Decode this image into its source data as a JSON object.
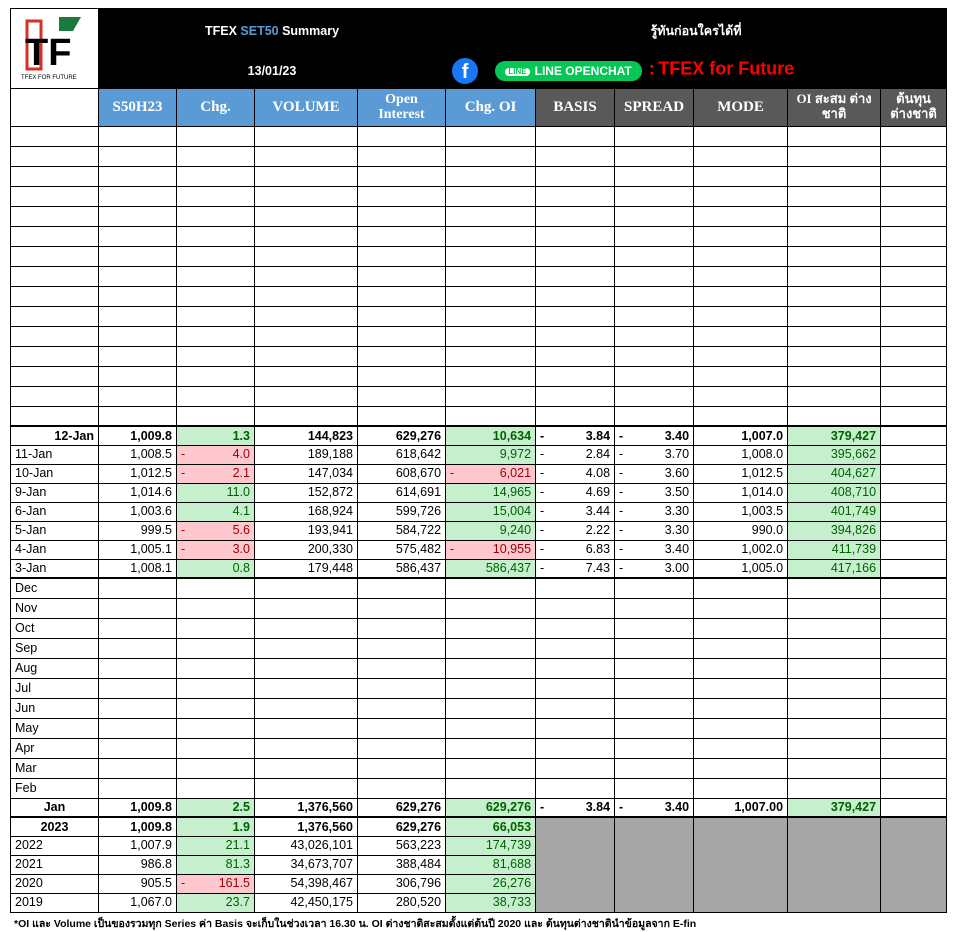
{
  "header": {
    "title_pre": "TFEX ",
    "title_accent": "SET50",
    "title_post": " Summary",
    "date": "13/01/23",
    "promo_text": "รู้ทันก่อนใครได้ที่",
    "line_chip": "LINE OPENCHAT",
    "line_glyph": "LINE",
    "promo_separator": ":",
    "promo_brand": "TFEX for Future",
    "logo_letters": "TF",
    "logo_caption": "TFEX FOR FUTURE",
    "fb_glyph": "f"
  },
  "columns": [
    "S50H23",
    "Chg.",
    "VOLUME",
    "Open Interest",
    "Chg. OI",
    "BASIS",
    "SPREAD",
    "MODE",
    "OI สะสม ต่างชาติ",
    "ต้นทุน ต่างชาติ"
  ],
  "daily": [
    {
      "date": "12-Jan",
      "price": "1,009.8",
      "chg": "1.3",
      "chg_neg": false,
      "volume": "144,823",
      "oi": "629,276",
      "chg_oi": "10,634",
      "oi_neg": false,
      "basis_sign": "-",
      "basis": "3.84",
      "spread_sign": "-",
      "spread": "3.40",
      "mode": "1,007.0",
      "foreign_oi": "379,427",
      "bold": true
    },
    {
      "date": "11-Jan",
      "price": "1,008.5",
      "chg": "4.0",
      "chg_neg": true,
      "volume": "189,188",
      "oi": "618,642",
      "chg_oi": "9,972",
      "oi_neg": false,
      "basis_sign": "-",
      "basis": "2.84",
      "spread_sign": "-",
      "spread": "3.70",
      "mode": "1,008.0",
      "foreign_oi": "395,662",
      "bold": false
    },
    {
      "date": "10-Jan",
      "price": "1,012.5",
      "chg": "2.1",
      "chg_neg": true,
      "volume": "147,034",
      "oi": "608,670",
      "chg_oi": "6,021",
      "oi_neg": true,
      "basis_sign": "-",
      "basis": "4.08",
      "spread_sign": "-",
      "spread": "3.60",
      "mode": "1,012.5",
      "foreign_oi": "404,627",
      "bold": false
    },
    {
      "date": "9-Jan",
      "price": "1,014.6",
      "chg": "11.0",
      "chg_neg": false,
      "volume": "152,872",
      "oi": "614,691",
      "chg_oi": "14,965",
      "oi_neg": false,
      "basis_sign": "-",
      "basis": "4.69",
      "spread_sign": "-",
      "spread": "3.50",
      "mode": "1,014.0",
      "foreign_oi": "408,710",
      "bold": false
    },
    {
      "date": "6-Jan",
      "price": "1,003.6",
      "chg": "4.1",
      "chg_neg": false,
      "volume": "168,924",
      "oi": "599,726",
      "chg_oi": "15,004",
      "oi_neg": false,
      "basis_sign": "-",
      "basis": "3.44",
      "spread_sign": "-",
      "spread": "3.30",
      "mode": "1,003.5",
      "foreign_oi": "401,749",
      "bold": false
    },
    {
      "date": "5-Jan",
      "price": "999.5",
      "chg": "5.6",
      "chg_neg": true,
      "volume": "193,941",
      "oi": "584,722",
      "chg_oi": "9,240",
      "oi_neg": false,
      "basis_sign": "-",
      "basis": "2.22",
      "spread_sign": "-",
      "spread": "3.30",
      "mode": "990.0",
      "foreign_oi": "394,826",
      "bold": false
    },
    {
      "date": "4-Jan",
      "price": "1,005.1",
      "chg": "3.0",
      "chg_neg": true,
      "volume": "200,330",
      "oi": "575,482",
      "chg_oi": "10,955",
      "oi_neg": true,
      "basis_sign": "-",
      "basis": "6.83",
      "spread_sign": "-",
      "spread": "3.40",
      "mode": "1,002.0",
      "foreign_oi": "411,739",
      "bold": false
    },
    {
      "date": "3-Jan",
      "price": "1,008.1",
      "chg": "0.8",
      "chg_neg": false,
      "volume": "179,448",
      "oi": "586,437",
      "chg_oi": "586,437",
      "oi_neg": false,
      "basis_sign": "-",
      "basis": "7.43",
      "spread_sign": "-",
      "spread": "3.00",
      "mode": "1,005.0",
      "foreign_oi": "417,166",
      "bold": false
    }
  ],
  "months": [
    "Dec",
    "Nov",
    "Oct",
    "Sep",
    "Aug",
    "Jul",
    "Jun",
    "May",
    "Apr",
    "Mar",
    "Feb"
  ],
  "month_total": {
    "label": "Jan",
    "price": "1,009.8",
    "chg": "2.5",
    "volume": "1,376,560",
    "oi": "629,276",
    "chg_oi": "629,276",
    "basis_sign": "-",
    "basis": "3.84",
    "spread_sign": "-",
    "spread": "3.40",
    "mode": "1,007.00",
    "foreign_oi": "379,427"
  },
  "years": [
    {
      "label": "2023",
      "price": "1,009.8",
      "chg": "1.9",
      "chg_neg": false,
      "volume": "1,376,560",
      "oi": "629,276",
      "chg_oi": "66,053",
      "bold": true
    },
    {
      "label": "2022",
      "price": "1,007.9",
      "chg": "21.1",
      "chg_neg": false,
      "volume": "43,026,101",
      "oi": "563,223",
      "chg_oi": "174,739",
      "bold": false
    },
    {
      "label": "2021",
      "price": "986.8",
      "chg": "81.3",
      "chg_neg": false,
      "volume": "34,673,707",
      "oi": "388,484",
      "chg_oi": "81,688",
      "bold": false
    },
    {
      "label": "2020",
      "price": "905.5",
      "chg": "161.5",
      "chg_neg": true,
      "volume": "54,398,467",
      "oi": "306,796",
      "chg_oi": "26,276",
      "bold": false
    },
    {
      "label": "2019",
      "price": "1,067.0",
      "chg": "23.7",
      "chg_neg": false,
      "volume": "42,450,175",
      "oi": "280,520",
      "chg_oi": "38,733",
      "bold": false
    }
  ],
  "footer": "*OI และ Volume เป็นของรวมทุก Series ค่า Basis จะเก็บในช่วงเวลา 16.30 น. OI ต่างชาติสะสมตั้งแต่ต้นปี 2020 และ ต้นทุนต่างชาตินำข้อมูลจาก E-fin",
  "colors": {
    "header_blue": "#5b9bd5",
    "header_gray": "#595959",
    "pos_fill": "#c6efce",
    "pos_text": "#006100",
    "neg_fill": "#ffc7ce",
    "neg_text": "#9c0006",
    "brand_red": "#ff0000",
    "line_green": "#06c755",
    "fb_blue": "#1877f2"
  }
}
